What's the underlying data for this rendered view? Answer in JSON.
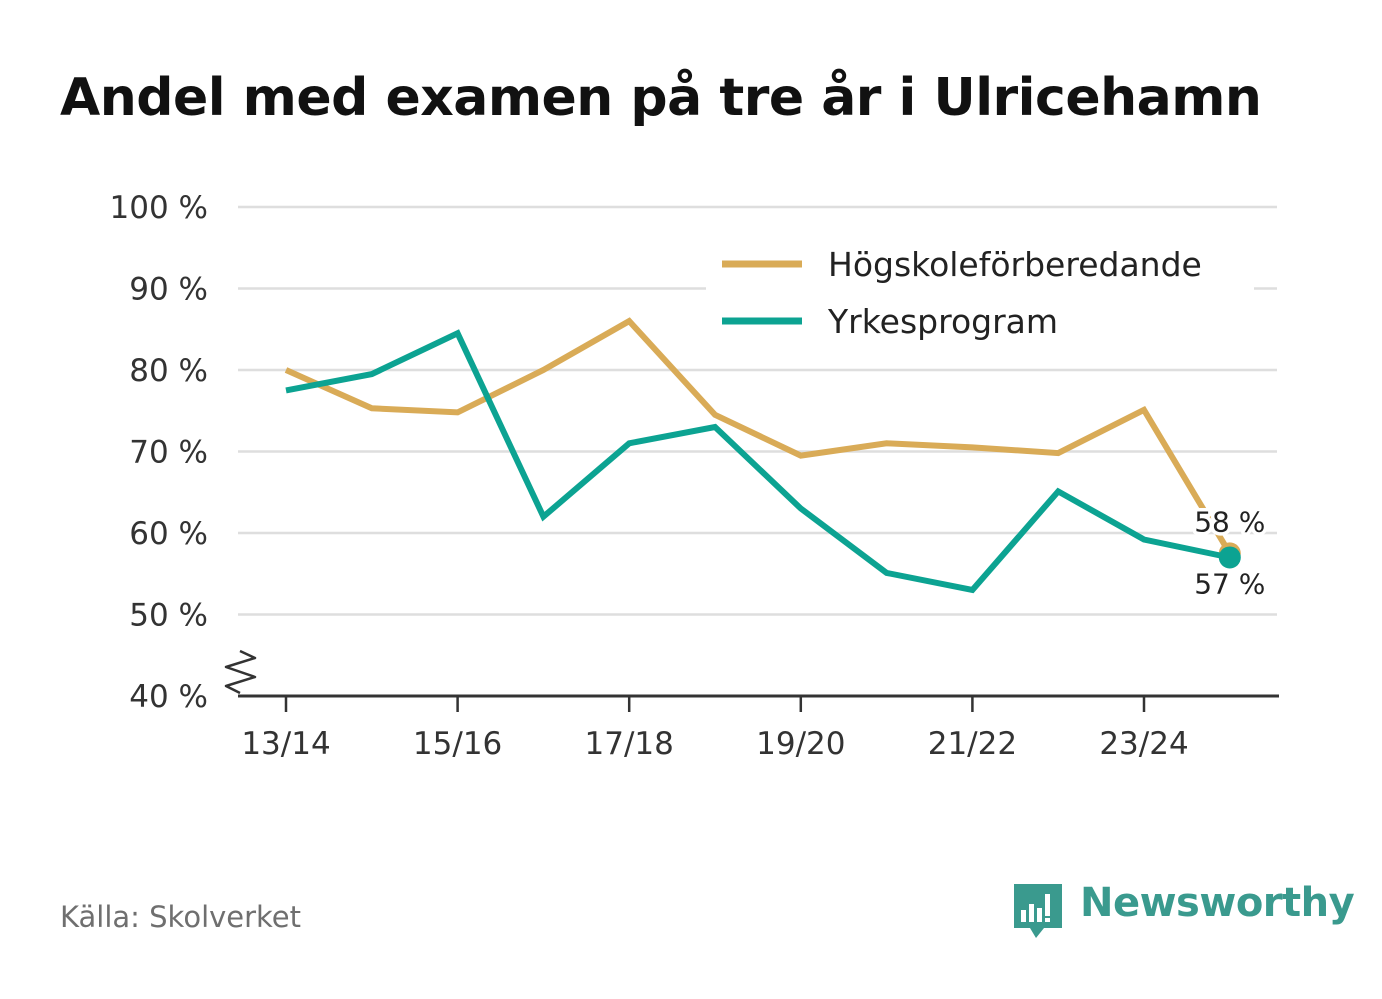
{
  "title": "Andel med examen på tre år i Ulricehamn",
  "source": "Källa: Skolverket",
  "brand": {
    "name": "Newsworthy",
    "color": "#3a9a8e"
  },
  "chart_data": {
    "type": "line",
    "title": "Andel med examen på tre år i Ulricehamn",
    "xlabel": "",
    "ylabel": "",
    "ylim": [
      40,
      100
    ],
    "y_ticks": [
      40,
      50,
      60,
      70,
      80,
      90,
      100
    ],
    "y_tick_labels": [
      "40 %",
      "50 %",
      "60 %",
      "70 %",
      "80 %",
      "90 %",
      "100 %"
    ],
    "y_axis_break": true,
    "categories": [
      "13/14",
      "14/15",
      "15/16",
      "16/17",
      "17/18",
      "18/19",
      "19/20",
      "20/21",
      "21/22",
      "22/23",
      "23/24",
      "24/25"
    ],
    "x_tick_labels": [
      "13/14",
      "",
      "15/16",
      "",
      "17/18",
      "",
      "19/20",
      "",
      "21/22",
      "",
      "23/24",
      ""
    ],
    "legend_position": "top-right",
    "grid": true,
    "series": [
      {
        "name": "Högskoleförberedande",
        "color": "#d9ab57",
        "values": [
          80,
          75.3,
          74.8,
          80,
          86,
          74.5,
          69.5,
          71,
          70.5,
          69.8,
          75.1,
          57.5
        ],
        "end_label": "58 %"
      },
      {
        "name": "Yrkesprogram",
        "color": "#0ca392",
        "values": [
          77.5,
          79.5,
          84.5,
          62,
          71,
          73,
          63,
          55.1,
          53,
          65.1,
          59.2,
          57
        ],
        "end_label": "57 %"
      }
    ]
  }
}
